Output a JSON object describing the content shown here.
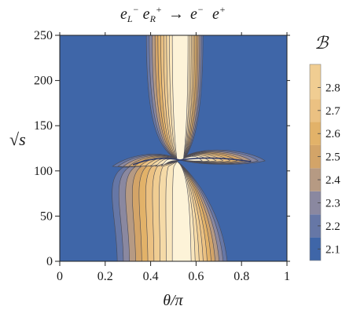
{
  "title": {
    "particle1": "e",
    "sub1": "L",
    "sup1": "−",
    "particle2": "e",
    "sub2": "R",
    "sup2": "+",
    "arrow": "→",
    "particle3": "e",
    "sup3": "−",
    "particle4": "e",
    "sup4": "+"
  },
  "colors": {
    "background_level": "#3f66a8",
    "levels": [
      "#6677a6",
      "#8a88a0",
      "#b69a83",
      "#d3a468",
      "#e2b269",
      "#ebc182",
      "#f0cd92",
      "#f5daa7",
      "#f9e6bd",
      "#fdf3d8"
    ]
  },
  "chart_data": {
    "type": "heatmap",
    "xlabel": "θ/π",
    "ylabel": "√s",
    "xlim": [
      0,
      1
    ],
    "ylim": [
      0,
      250
    ],
    "x_ticks": [
      "0",
      "0.2",
      "0.4",
      "0.6",
      "0.8",
      "1"
    ],
    "x_tick_values": [
      0,
      0.2,
      0.4,
      0.6,
      0.8,
      1
    ],
    "y_ticks": [
      "0",
      "50",
      "100",
      "150",
      "200",
      "250"
    ],
    "y_tick_values": [
      0,
      50,
      100,
      150,
      200,
      250
    ],
    "legend_title": "ℬ",
    "colorbar_labels": [
      "2.1",
      "2.2",
      "2.3",
      "2.4",
      "2.5",
      "2.6",
      "2.7",
      "2.8"
    ],
    "colorbar_values": [
      2.1,
      2.2,
      2.3,
      2.4,
      2.5,
      2.6,
      2.7,
      2.8
    ],
    "colorbar_range": [
      2.05,
      2.9
    ],
    "feature_point": {
      "x": 0.53,
      "y": 112
    },
    "legend_position": "right",
    "grid": false
  }
}
